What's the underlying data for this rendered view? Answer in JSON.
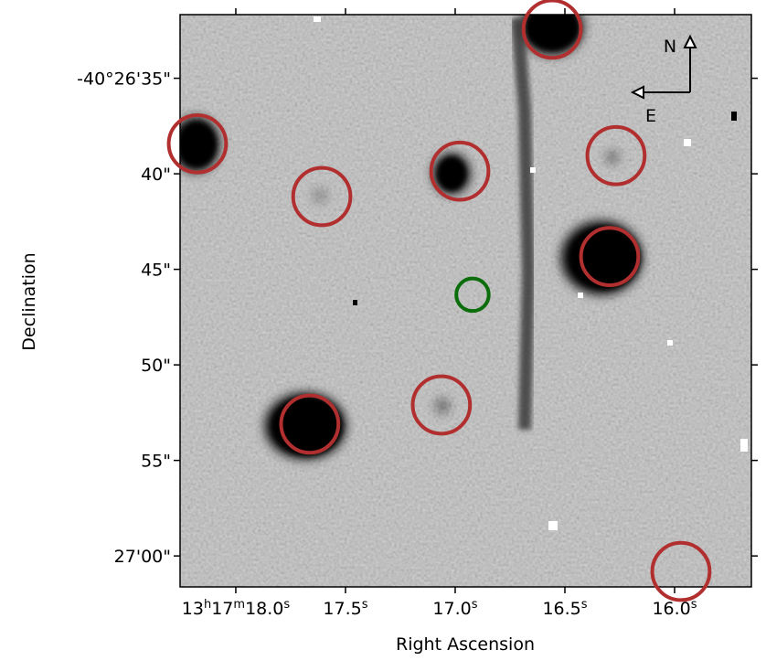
{
  "chart_data": {
    "type": "image",
    "x_label": "Right Ascension",
    "y_label": "Declination",
    "xlim": [
      18.254,
      15.65
    ],
    "ylim": [
      31.67,
      61.62
    ],
    "xticks": [
      {
        "value": 18.0,
        "label": "13h17m18.0s"
      },
      {
        "value": 17.5,
        "label": "17.5s"
      },
      {
        "value": 17.0,
        "label": "17.0s"
      },
      {
        "value": 16.5,
        "label": "16.5s"
      },
      {
        "value": 16.0,
        "label": "16.0s"
      }
    ],
    "yticks": [
      {
        "value": 35,
        "label": "-40°26'35\""
      },
      {
        "value": 40,
        "label": "40\""
      },
      {
        "value": 45,
        "label": "45\""
      },
      {
        "value": 50,
        "label": "50\""
      },
      {
        "value": 55,
        "label": "55\""
      },
      {
        "value": 60,
        "label": "27'00\""
      }
    ],
    "circles": [
      {
        "color": "#b22f2f",
        "radius": 1.5,
        "x": [
          16.558,
          18.175,
          17.608,
          16.979,
          16.267,
          16.296,
          17.663,
          17.063,
          15.971
        ],
        "y": [
          32.43,
          38.43,
          41.19,
          39.86,
          39.05,
          44.33,
          53.1,
          52.1,
          60.81
        ]
      },
      {
        "color": "#0b6e0b",
        "radius": 0.85,
        "x": [
          16.921
        ],
        "y": [
          46.33
        ]
      }
    ],
    "compass": {
      "north": "N",
      "east": "E"
    }
  }
}
